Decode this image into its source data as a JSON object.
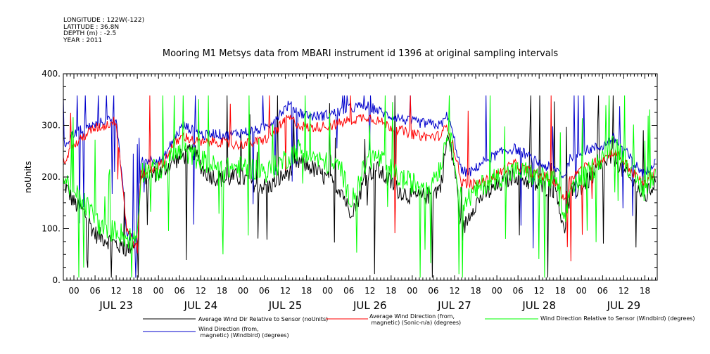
{
  "header": {
    "longitude": "LONGITUDE : 122W(-122)",
    "latitude": "LATITUDE : 36.8N",
    "depth": "DEPTH (m) : -2.5",
    "year": "YEAR : 2011"
  },
  "chart_data": {
    "type": "line",
    "title": "Mooring M1 Metsys data from MBARI instrument id 1396 at original sampling intervals",
    "ylabel": "noUnits",
    "xlabel": "",
    "ylim": [
      0,
      400
    ],
    "y_ticks": [
      "0.",
      "100.",
      "200.",
      "300.",
      "400."
    ],
    "xlim": [
      "2011-07-22T21:00",
      "2011-07-29T21:30"
    ],
    "x_tick_hours": [
      "00",
      "06",
      "12",
      "18",
      "00",
      "06",
      "12",
      "18",
      "00",
      "06",
      "12",
      "18",
      "00",
      "06",
      "12",
      "18",
      "00",
      "06",
      "12",
      "18",
      "00",
      "06",
      "12",
      "18",
      "00",
      "06",
      "12",
      "18"
    ],
    "day_labels": [
      "JUL 23",
      "JUL 24",
      "JUL 25",
      "JUL 26",
      "JUL 27",
      "JUL 28",
      "JUL 29"
    ],
    "grid": false,
    "legend_position": "bottom",
    "series": [
      {
        "name": "Average Wind Dir Relative to Sensor (noUnits)",
        "color": "#000000",
        "points": [
          [
            "2011-07-22T21:00",
            190
          ],
          [
            "2011-07-23T00:00",
            150
          ],
          [
            "2011-07-23T03:00",
            130
          ],
          [
            "2011-07-23T06:00",
            90
          ],
          [
            "2011-07-23T09:00",
            80
          ],
          [
            "2011-07-23T12:00",
            70
          ],
          [
            "2011-07-23T15:00",
            60
          ],
          [
            "2011-07-23T18:00",
            80
          ],
          [
            "2011-07-23T19:00",
            200
          ],
          [
            "2011-07-23T22:00",
            205
          ],
          [
            "2011-07-24T01:00",
            210
          ],
          [
            "2011-07-24T04:00",
            230
          ],
          [
            "2011-07-24T07:00",
            240
          ],
          [
            "2011-07-24T10:00",
            250
          ],
          [
            "2011-07-24T13:00",
            210
          ],
          [
            "2011-07-24T16:00",
            200
          ],
          [
            "2011-07-24T19:00",
            195
          ],
          [
            "2011-07-24T22:00",
            200
          ],
          [
            "2011-07-25T01:00",
            195
          ],
          [
            "2011-07-25T04:00",
            185
          ],
          [
            "2011-07-25T07:00",
            180
          ],
          [
            "2011-07-25T10:00",
            195
          ],
          [
            "2011-07-25T13:00",
            210
          ],
          [
            "2011-07-25T16:00",
            230
          ],
          [
            "2011-07-25T19:00",
            220
          ],
          [
            "2011-07-25T22:00",
            205
          ],
          [
            "2011-07-26T01:00",
            190
          ],
          [
            "2011-07-26T04:00",
            175
          ],
          [
            "2011-07-26T06:00",
            135
          ],
          [
            "2011-07-26T08:00",
            145
          ],
          [
            "2011-07-26T11:00",
            205
          ],
          [
            "2011-07-26T14:00",
            215
          ],
          [
            "2011-07-26T17:00",
            195
          ],
          [
            "2011-07-26T20:00",
            175
          ],
          [
            "2011-07-26T23:00",
            165
          ],
          [
            "2011-07-27T02:00",
            160
          ],
          [
            "2011-07-27T05:00",
            165
          ],
          [
            "2011-07-27T08:00",
            180
          ],
          [
            "2011-07-27T10:00",
            280
          ],
          [
            "2011-07-27T12:00",
            220
          ],
          [
            "2011-07-27T14:00",
            90
          ],
          [
            "2011-07-27T17:00",
            140
          ],
          [
            "2011-07-27T20:00",
            165
          ],
          [
            "2011-07-27T23:00",
            175
          ],
          [
            "2011-07-28T02:00",
            190
          ],
          [
            "2011-07-28T05:00",
            205
          ],
          [
            "2011-07-28T08:00",
            195
          ],
          [
            "2011-07-28T11:00",
            185
          ],
          [
            "2011-07-28T14:00",
            180
          ],
          [
            "2011-07-28T17:00",
            175
          ],
          [
            "2011-07-28T19:00",
            90
          ],
          [
            "2011-07-28T21:00",
            170
          ],
          [
            "2011-07-29T00:00",
            180
          ],
          [
            "2011-07-29T03:00",
            200
          ],
          [
            "2011-07-29T06:00",
            220
          ],
          [
            "2011-07-29T09:00",
            240
          ],
          [
            "2011-07-29T12:00",
            210
          ],
          [
            "2011-07-29T15:00",
            185
          ],
          [
            "2011-07-29T18:00",
            160
          ],
          [
            "2011-07-29T21:00",
            190
          ]
        ]
      },
      {
        "name": "Average Wind Direction (from, magnetic) (Sonic-n/a) (degrees)",
        "color": "#ff0000",
        "points": [
          [
            "2011-07-22T21:00",
            230
          ],
          [
            "2011-07-23T00:00",
            260
          ],
          [
            "2011-07-23T03:00",
            280
          ],
          [
            "2011-07-23T06:00",
            295
          ],
          [
            "2011-07-23T09:00",
            300
          ],
          [
            "2011-07-23T12:00",
            310
          ],
          [
            "2011-07-23T15:00",
            100
          ],
          [
            "2011-07-23T18:00",
            60
          ],
          [
            "2011-07-23T19:00",
            205
          ],
          [
            "2011-07-23T22:00",
            215
          ],
          [
            "2011-07-24T01:00",
            225
          ],
          [
            "2011-07-24T04:00",
            260
          ],
          [
            "2011-07-24T07:00",
            280
          ],
          [
            "2011-07-24T10:00",
            270
          ],
          [
            "2011-07-24T13:00",
            265
          ],
          [
            "2011-07-24T16:00",
            270
          ],
          [
            "2011-07-24T19:00",
            265
          ],
          [
            "2011-07-24T22:00",
            262
          ],
          [
            "2011-07-25T01:00",
            265
          ],
          [
            "2011-07-25T04:00",
            268
          ],
          [
            "2011-07-25T07:00",
            275
          ],
          [
            "2011-07-25T10:00",
            295
          ],
          [
            "2011-07-25T13:00",
            315
          ],
          [
            "2011-07-25T16:00",
            300
          ],
          [
            "2011-07-25T19:00",
            295
          ],
          [
            "2011-07-25T22:00",
            298
          ],
          [
            "2011-07-26T01:00",
            300
          ],
          [
            "2011-07-26T04:00",
            305
          ],
          [
            "2011-07-26T06:00",
            310
          ],
          [
            "2011-07-26T08:00",
            312
          ],
          [
            "2011-07-26T11:00",
            318
          ],
          [
            "2011-07-26T14:00",
            310
          ],
          [
            "2011-07-26T17:00",
            300
          ],
          [
            "2011-07-26T20:00",
            292
          ],
          [
            "2011-07-26T23:00",
            285
          ],
          [
            "2011-07-27T02:00",
            280
          ],
          [
            "2011-07-27T05:00",
            278
          ],
          [
            "2011-07-27T08:00",
            280
          ],
          [
            "2011-07-27T10:00",
            300
          ],
          [
            "2011-07-27T12:00",
            250
          ],
          [
            "2011-07-27T14:00",
            190
          ],
          [
            "2011-07-27T17:00",
            185
          ],
          [
            "2011-07-27T20:00",
            190
          ],
          [
            "2011-07-27T23:00",
            200
          ],
          [
            "2011-07-28T02:00",
            215
          ],
          [
            "2011-07-28T05:00",
            225
          ],
          [
            "2011-07-28T08:00",
            215
          ],
          [
            "2011-07-28T11:00",
            205
          ],
          [
            "2011-07-28T14:00",
            200
          ],
          [
            "2011-07-28T17:00",
            190
          ],
          [
            "2011-07-28T19:00",
            155
          ],
          [
            "2011-07-28T21:00",
            200
          ],
          [
            "2011-07-29T00:00",
            215
          ],
          [
            "2011-07-29T03:00",
            225
          ],
          [
            "2011-07-29T06:00",
            235
          ],
          [
            "2011-07-29T09:00",
            250
          ],
          [
            "2011-07-29T12:00",
            230
          ],
          [
            "2011-07-29T15:00",
            205
          ],
          [
            "2011-07-29T18:00",
            185
          ],
          [
            "2011-07-29T21:00",
            215
          ]
        ]
      },
      {
        "name": "Wind Direction Relative to Sensor (Windbird) (degrees)",
        "color": "#00ff00",
        "points": [
          [
            "2011-07-22T21:00",
            200
          ],
          [
            "2011-07-23T00:00",
            170
          ],
          [
            "2011-07-23T03:00",
            150
          ],
          [
            "2011-07-23T06:00",
            120
          ],
          [
            "2011-07-23T09:00",
            90
          ],
          [
            "2011-07-23T12:00",
            100
          ],
          [
            "2011-07-23T15:00",
            80
          ],
          [
            "2011-07-23T18:00",
            90
          ],
          [
            "2011-07-23T19:00",
            210
          ],
          [
            "2011-07-23T22:00",
            215
          ],
          [
            "2011-07-24T01:00",
            210
          ],
          [
            "2011-07-24T04:00",
            240
          ],
          [
            "2011-07-24T07:00",
            250
          ],
          [
            "2011-07-24T10:00",
            240
          ],
          [
            "2011-07-24T13:00",
            230
          ],
          [
            "2011-07-24T16:00",
            220
          ],
          [
            "2011-07-24T19:00",
            215
          ],
          [
            "2011-07-24T22:00",
            220
          ],
          [
            "2011-07-25T01:00",
            218
          ],
          [
            "2011-07-25T04:00",
            215
          ],
          [
            "2011-07-25T07:00",
            210
          ],
          [
            "2011-07-25T10:00",
            225
          ],
          [
            "2011-07-25T13:00",
            240
          ],
          [
            "2011-07-25T16:00",
            255
          ],
          [
            "2011-07-25T19:00",
            245
          ],
          [
            "2011-07-25T22:00",
            230
          ],
          [
            "2011-07-26T01:00",
            225
          ],
          [
            "2011-07-26T04:00",
            215
          ],
          [
            "2011-07-26T06:00",
            160
          ],
          [
            "2011-07-26T08:00",
            170
          ],
          [
            "2011-07-26T11:00",
            230
          ],
          [
            "2011-07-26T14:00",
            240
          ],
          [
            "2011-07-26T17:00",
            220
          ],
          [
            "2011-07-26T20:00",
            200
          ],
          [
            "2011-07-26T23:00",
            190
          ],
          [
            "2011-07-27T02:00",
            185
          ],
          [
            "2011-07-27T05:00",
            190
          ],
          [
            "2011-07-27T08:00",
            220
          ],
          [
            "2011-07-27T10:00",
            290
          ],
          [
            "2011-07-27T12:00",
            240
          ],
          [
            "2011-07-27T14:00",
            150
          ],
          [
            "2011-07-27T17:00",
            165
          ],
          [
            "2011-07-27T20:00",
            185
          ],
          [
            "2011-07-27T23:00",
            195
          ],
          [
            "2011-07-28T02:00",
            205
          ],
          [
            "2011-07-28T05:00",
            210
          ],
          [
            "2011-07-28T08:00",
            210
          ],
          [
            "2011-07-28T11:00",
            200
          ],
          [
            "2011-07-28T14:00",
            195
          ],
          [
            "2011-07-28T17:00",
            190
          ],
          [
            "2011-07-28T19:00",
            100
          ],
          [
            "2011-07-28T21:00",
            185
          ],
          [
            "2011-07-29T00:00",
            195
          ],
          [
            "2011-07-29T03:00",
            215
          ],
          [
            "2011-07-29T06:00",
            240
          ],
          [
            "2011-07-29T09:00",
            270
          ],
          [
            "2011-07-29T12:00",
            240
          ],
          [
            "2011-07-29T15:00",
            200
          ],
          [
            "2011-07-29T18:00",
            170
          ],
          [
            "2011-07-29T21:00",
            215
          ]
        ]
      },
      {
        "name": "Wind Direction (from, magnetic) (Windbird) (degrees)",
        "color": "#0000cc",
        "points": [
          [
            "2011-07-22T21:00",
            260
          ],
          [
            "2011-07-23T00:00",
            285
          ],
          [
            "2011-07-23T03:00",
            295
          ],
          [
            "2011-07-23T06:00",
            300
          ],
          [
            "2011-07-23T09:00",
            310
          ],
          [
            "2011-07-23T12:00",
            320
          ],
          [
            "2011-07-23T15:00",
            90
          ],
          [
            "2011-07-23T18:00",
            70
          ],
          [
            "2011-07-23T19:00",
            230
          ],
          [
            "2011-07-23T22:00",
            235
          ],
          [
            "2011-07-24T01:00",
            230
          ],
          [
            "2011-07-24T04:00",
            270
          ],
          [
            "2011-07-24T07:00",
            300
          ],
          [
            "2011-07-24T10:00",
            290
          ],
          [
            "2011-07-24T13:00",
            280
          ],
          [
            "2011-07-24T16:00",
            285
          ],
          [
            "2011-07-24T19:00",
            280
          ],
          [
            "2011-07-24T22:00",
            285
          ],
          [
            "2011-07-25T01:00",
            288
          ],
          [
            "2011-07-25T04:00",
            290
          ],
          [
            "2011-07-25T07:00",
            300
          ],
          [
            "2011-07-25T10:00",
            320
          ],
          [
            "2011-07-25T13:00",
            340
          ],
          [
            "2011-07-25T16:00",
            325
          ],
          [
            "2011-07-25T19:00",
            318
          ],
          [
            "2011-07-25T22:00",
            318
          ],
          [
            "2011-07-26T01:00",
            322
          ],
          [
            "2011-07-26T04:00",
            328
          ],
          [
            "2011-07-26T06:00",
            332
          ],
          [
            "2011-07-26T08:00",
            335
          ],
          [
            "2011-07-26T11:00",
            338
          ],
          [
            "2011-07-26T14:00",
            330
          ],
          [
            "2011-07-26T17:00",
            320
          ],
          [
            "2011-07-26T20:00",
            315
          ],
          [
            "2011-07-26T23:00",
            308
          ],
          [
            "2011-07-27T02:00",
            305
          ],
          [
            "2011-07-27T05:00",
            303
          ],
          [
            "2011-07-27T08:00",
            300
          ],
          [
            "2011-07-27T10:00",
            320
          ],
          [
            "2011-07-27T12:00",
            270
          ],
          [
            "2011-07-27T14:00",
            210
          ],
          [
            "2011-07-27T17:00",
            210
          ],
          [
            "2011-07-27T20:00",
            230
          ],
          [
            "2011-07-27T23:00",
            240
          ],
          [
            "2011-07-28T02:00",
            250
          ],
          [
            "2011-07-28T05:00",
            255
          ],
          [
            "2011-07-28T08:00",
            245
          ],
          [
            "2011-07-28T11:00",
            230
          ],
          [
            "2011-07-28T14:00",
            220
          ],
          [
            "2011-07-28T17:00",
            215
          ],
          [
            "2011-07-28T19:00",
            200
          ],
          [
            "2011-07-28T21:00",
            240
          ],
          [
            "2011-07-29T00:00",
            250
          ],
          [
            "2011-07-29T03:00",
            255
          ],
          [
            "2011-07-29T06:00",
            260
          ],
          [
            "2011-07-29T09:00",
            275
          ],
          [
            "2011-07-29T12:00",
            255
          ],
          [
            "2011-07-29T15:00",
            225
          ],
          [
            "2011-07-29T18:00",
            205
          ],
          [
            "2011-07-29T21:00",
            235
          ]
        ]
      }
    ]
  }
}
